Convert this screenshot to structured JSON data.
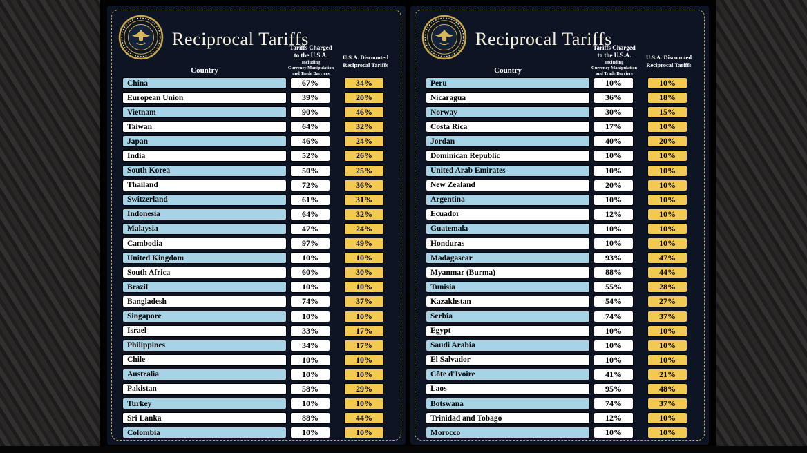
{
  "header": {
    "title": "Reciprocal Tariffs",
    "country_col": "Country",
    "charged_col": "Tariffs Charged\nto the U.S.A.",
    "charged_sub": "Including\nCurrency Manipulation\nand Trade Barriers",
    "discounted_col": "U.S.A. Discounted\nReciprocal Tariffs"
  },
  "colors": {
    "board_background": "#0d1524",
    "gold_border": "#c9a84c",
    "row_blue": "#a6d4e6",
    "row_white": "#ffffff",
    "pill_charged_white": "#ffffff",
    "pill_discounted_yellow": "#f2ca52",
    "title_cream": "#f4efdc"
  },
  "icons": {
    "seal": "presidential-seal-icon"
  },
  "chart_data": [
    {
      "type": "table",
      "title": "Reciprocal Tariffs",
      "columns": [
        "Country",
        "Tariffs Charged to the U.S.A. Including Currency Manipulation and Trade Barriers",
        "U.S.A. Discounted Reciprocal Tariffs"
      ],
      "rows": [
        {
          "country": "China",
          "charged": "67%",
          "discounted": "34%",
          "shade": "blue"
        },
        {
          "country": "European Union",
          "charged": "39%",
          "discounted": "20%",
          "shade": "white"
        },
        {
          "country": "Vietnam",
          "charged": "90%",
          "discounted": "46%",
          "shade": "blue"
        },
        {
          "country": "Taiwan",
          "charged": "64%",
          "discounted": "32%",
          "shade": "white"
        },
        {
          "country": "Japan",
          "charged": "46%",
          "discounted": "24%",
          "shade": "blue"
        },
        {
          "country": "India",
          "charged": "52%",
          "discounted": "26%",
          "shade": "white"
        },
        {
          "country": "South Korea",
          "charged": "50%",
          "discounted": "25%",
          "shade": "blue"
        },
        {
          "country": "Thailand",
          "charged": "72%",
          "discounted": "36%",
          "shade": "white"
        },
        {
          "country": "Switzerland",
          "charged": "61%",
          "discounted": "31%",
          "shade": "blue"
        },
        {
          "country": "Indonesia",
          "charged": "64%",
          "discounted": "32%",
          "shade": "blue"
        },
        {
          "country": "Malaysia",
          "charged": "47%",
          "discounted": "24%",
          "shade": "blue"
        },
        {
          "country": "Cambodia",
          "charged": "97%",
          "discounted": "49%",
          "shade": "white"
        },
        {
          "country": "United Kingdom",
          "charged": "10%",
          "discounted": "10%",
          "shade": "blue"
        },
        {
          "country": "South Africa",
          "charged": "60%",
          "discounted": "30%",
          "shade": "white"
        },
        {
          "country": "Brazil",
          "charged": "10%",
          "discounted": "10%",
          "shade": "blue"
        },
        {
          "country": "Bangladesh",
          "charged": "74%",
          "discounted": "37%",
          "shade": "white"
        },
        {
          "country": "Singapore",
          "charged": "10%",
          "discounted": "10%",
          "shade": "blue"
        },
        {
          "country": "Israel",
          "charged": "33%",
          "discounted": "17%",
          "shade": "white"
        },
        {
          "country": "Philippines",
          "charged": "34%",
          "discounted": "17%",
          "shade": "blue"
        },
        {
          "country": "Chile",
          "charged": "10%",
          "discounted": "10%",
          "shade": "white"
        },
        {
          "country": "Australia",
          "charged": "10%",
          "discounted": "10%",
          "shade": "blue"
        },
        {
          "country": "Pakistan",
          "charged": "58%",
          "discounted": "29%",
          "shade": "white"
        },
        {
          "country": "Turkey",
          "charged": "10%",
          "discounted": "10%",
          "shade": "blue"
        },
        {
          "country": "Sri Lanka",
          "charged": "88%",
          "discounted": "44%",
          "shade": "white"
        },
        {
          "country": "Colombia",
          "charged": "10%",
          "discounted": "10%",
          "shade": "blue"
        }
      ]
    },
    {
      "type": "table",
      "title": "Reciprocal Tariffs",
      "columns": [
        "Country",
        "Tariffs Charged to the U.S.A. Including Currency Manipulation and Trade Barriers",
        "U.S.A. Discounted Reciprocal Tariffs"
      ],
      "rows": [
        {
          "country": "Peru",
          "charged": "10%",
          "discounted": "10%",
          "shade": "blue"
        },
        {
          "country": "Nicaragua",
          "charged": "36%",
          "discounted": "18%",
          "shade": "white"
        },
        {
          "country": "Norway",
          "charged": "30%",
          "discounted": "15%",
          "shade": "blue"
        },
        {
          "country": "Costa Rica",
          "charged": "17%",
          "discounted": "10%",
          "shade": "white"
        },
        {
          "country": "Jordan",
          "charged": "40%",
          "discounted": "20%",
          "shade": "blue"
        },
        {
          "country": "Dominican Republic",
          "charged": "10%",
          "discounted": "10%",
          "shade": "white"
        },
        {
          "country": "United Arab Emirates",
          "charged": "10%",
          "discounted": "10%",
          "shade": "blue"
        },
        {
          "country": "New Zealand",
          "charged": "20%",
          "discounted": "10%",
          "shade": "white"
        },
        {
          "country": "Argentina",
          "charged": "10%",
          "discounted": "10%",
          "shade": "blue"
        },
        {
          "country": "Ecuador",
          "charged": "12%",
          "discounted": "10%",
          "shade": "white"
        },
        {
          "country": "Guatemala",
          "charged": "10%",
          "discounted": "10%",
          "shade": "blue"
        },
        {
          "country": "Honduras",
          "charged": "10%",
          "discounted": "10%",
          "shade": "white"
        },
        {
          "country": "Madagascar",
          "charged": "93%",
          "discounted": "47%",
          "shade": "blue"
        },
        {
          "country": "Myanmar (Burma)",
          "charged": "88%",
          "discounted": "44%",
          "shade": "white"
        },
        {
          "country": "Tunisia",
          "charged": "55%",
          "discounted": "28%",
          "shade": "blue"
        },
        {
          "country": "Kazakhstan",
          "charged": "54%",
          "discounted": "27%",
          "shade": "white"
        },
        {
          "country": "Serbia",
          "charged": "74%",
          "discounted": "37%",
          "shade": "blue"
        },
        {
          "country": "Egypt",
          "charged": "10%",
          "discounted": "10%",
          "shade": "white"
        },
        {
          "country": "Saudi Arabia",
          "charged": "10%",
          "discounted": "10%",
          "shade": "blue"
        },
        {
          "country": "El Salvador",
          "charged": "10%",
          "discounted": "10%",
          "shade": "white"
        },
        {
          "country": "Côte d'Ivoire",
          "charged": "41%",
          "discounted": "21%",
          "shade": "blue"
        },
        {
          "country": "Laos",
          "charged": "95%",
          "discounted": "48%",
          "shade": "white"
        },
        {
          "country": "Botswana",
          "charged": "74%",
          "discounted": "37%",
          "shade": "blue"
        },
        {
          "country": "Trinidad and Tobago",
          "charged": "12%",
          "discounted": "10%",
          "shade": "white"
        },
        {
          "country": "Morocco",
          "charged": "10%",
          "discounted": "10%",
          "shade": "blue"
        }
      ]
    }
  ]
}
